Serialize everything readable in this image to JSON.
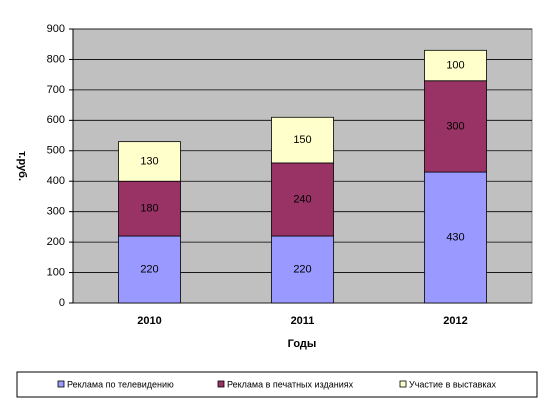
{
  "chart_data": {
    "type": "bar",
    "stacked": true,
    "categories": [
      "2010",
      "2011",
      "2012"
    ],
    "series": [
      {
        "name": "Реклама по телевидению",
        "color": "#9999ff",
        "values": [
          220,
          220,
          430
        ]
      },
      {
        "name": "Реклама в печатных изданиях",
        "color": "#993366",
        "values": [
          180,
          240,
          300
        ]
      },
      {
        "name": "Участие в выставках",
        "color": "#ffffcc",
        "values": [
          130,
          150,
          100
        ]
      }
    ],
    "x_label": "Годы",
    "y_label": "т.руб.",
    "ylim": [
      0,
      900
    ],
    "yticks": [
      0,
      100,
      200,
      300,
      400,
      500,
      600,
      700,
      800,
      900
    ],
    "grid": true,
    "legend": "bottom"
  }
}
